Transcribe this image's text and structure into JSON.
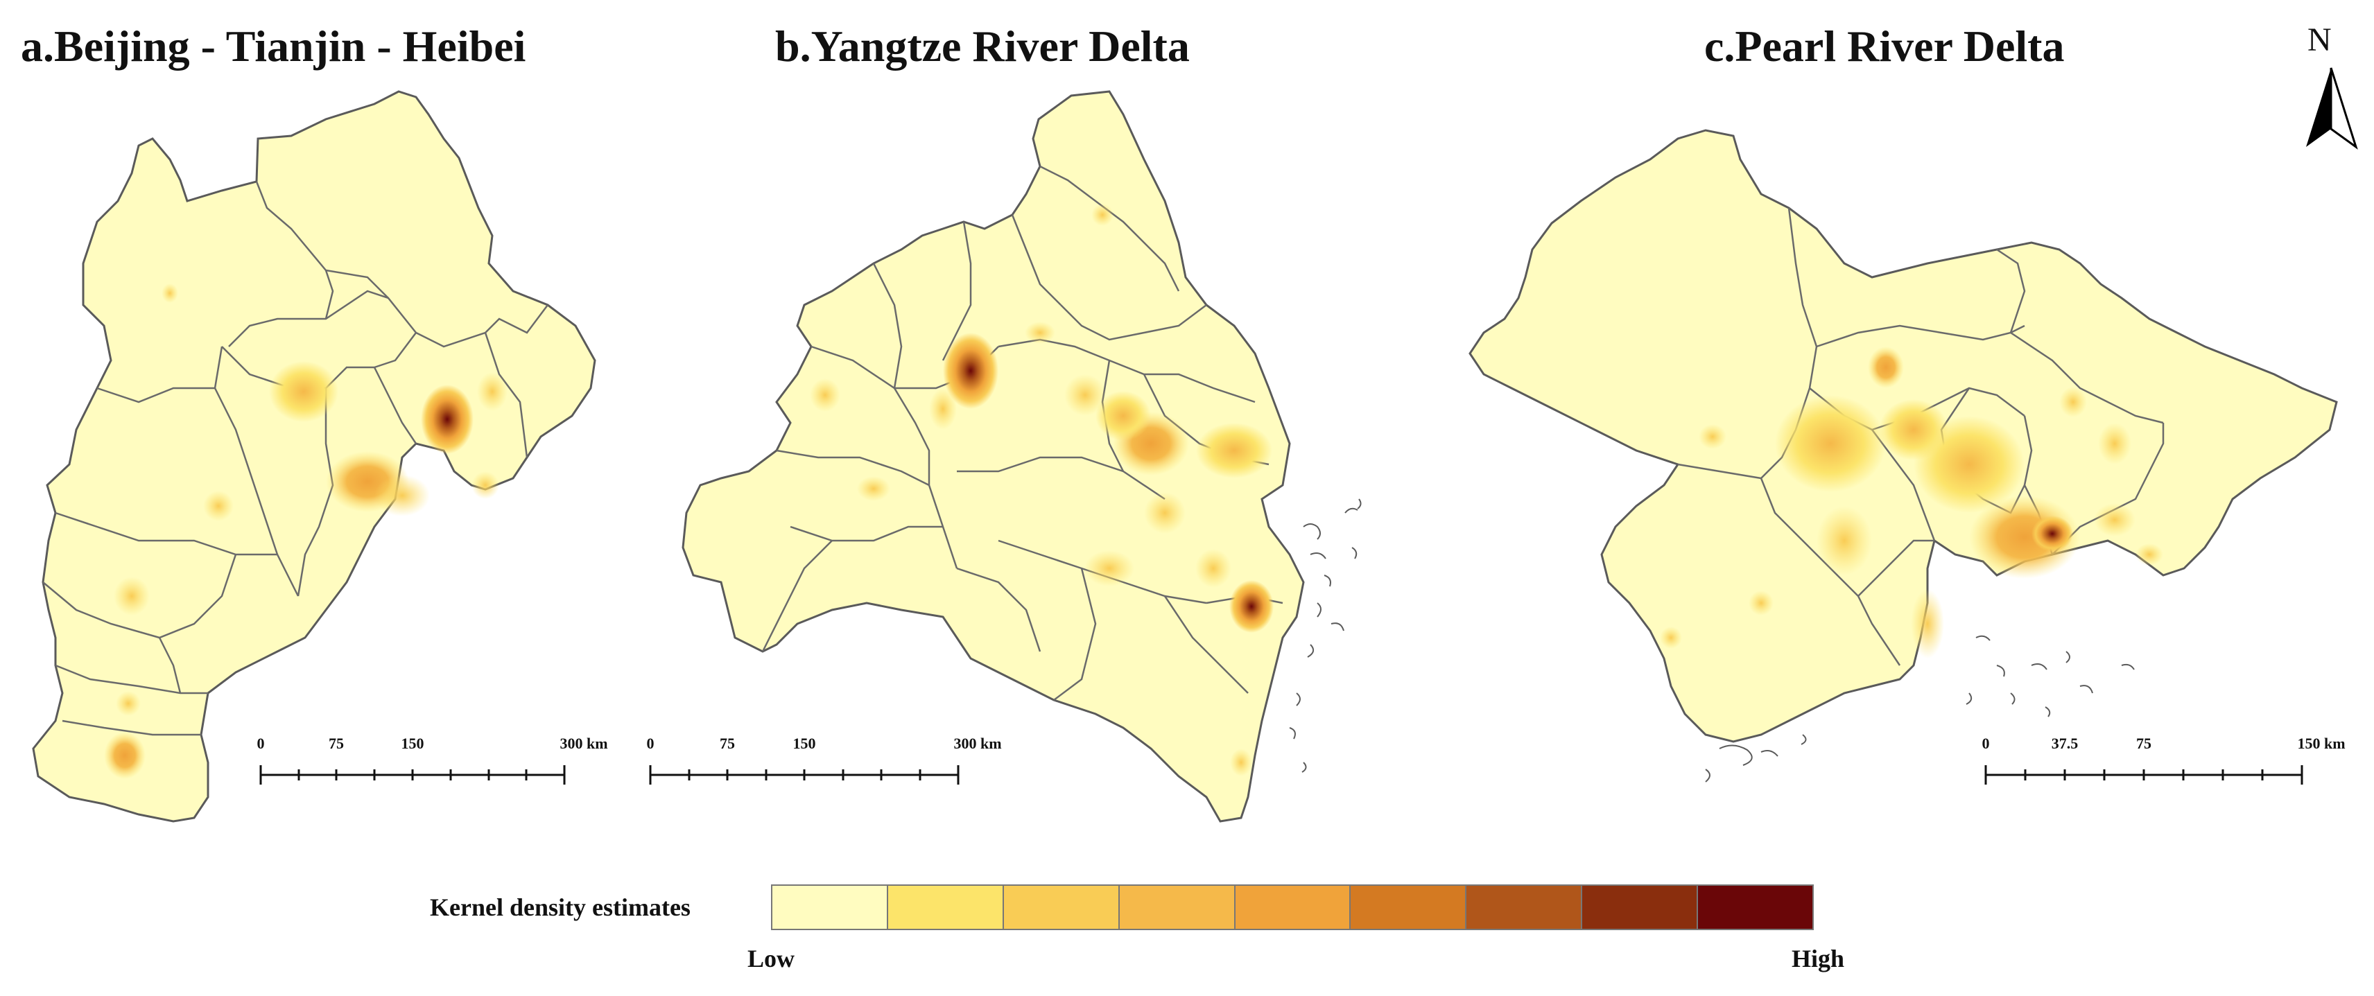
{
  "panels": [
    {
      "title": "a.Beijing - Tianjin - Heibei",
      "scale": {
        "ticks": [
          "0",
          "75",
          "150",
          "300 km"
        ],
        "max_value": 300,
        "unit": "km"
      }
    },
    {
      "title": "b.Yangtze River Delta",
      "scale": {
        "ticks": [
          "0",
          "75",
          "150",
          "300 km"
        ],
        "max_value": 300,
        "unit": "km"
      }
    },
    {
      "title": "c.Pearl River Delta",
      "scale": {
        "ticks": [
          "0",
          "37.5",
          "75",
          "150 km"
        ],
        "max_value": 150,
        "unit": "km"
      }
    }
  ],
  "north_arrow": {
    "label": "N"
  },
  "legend": {
    "title": "Kernel density estimates",
    "low_label": "Low",
    "high_label": "High",
    "colors": [
      "#fffcc0",
      "#fce46a",
      "#f9cc55",
      "#f5b94a",
      "#f0a33a",
      "#d47a22",
      "#b0561a",
      "#8a2e0d",
      "#6a0608"
    ]
  },
  "styles": {
    "base_fill": "#fffcc0",
    "boundary_color": "#5a5a5a",
    "background": "#ffffff"
  }
}
